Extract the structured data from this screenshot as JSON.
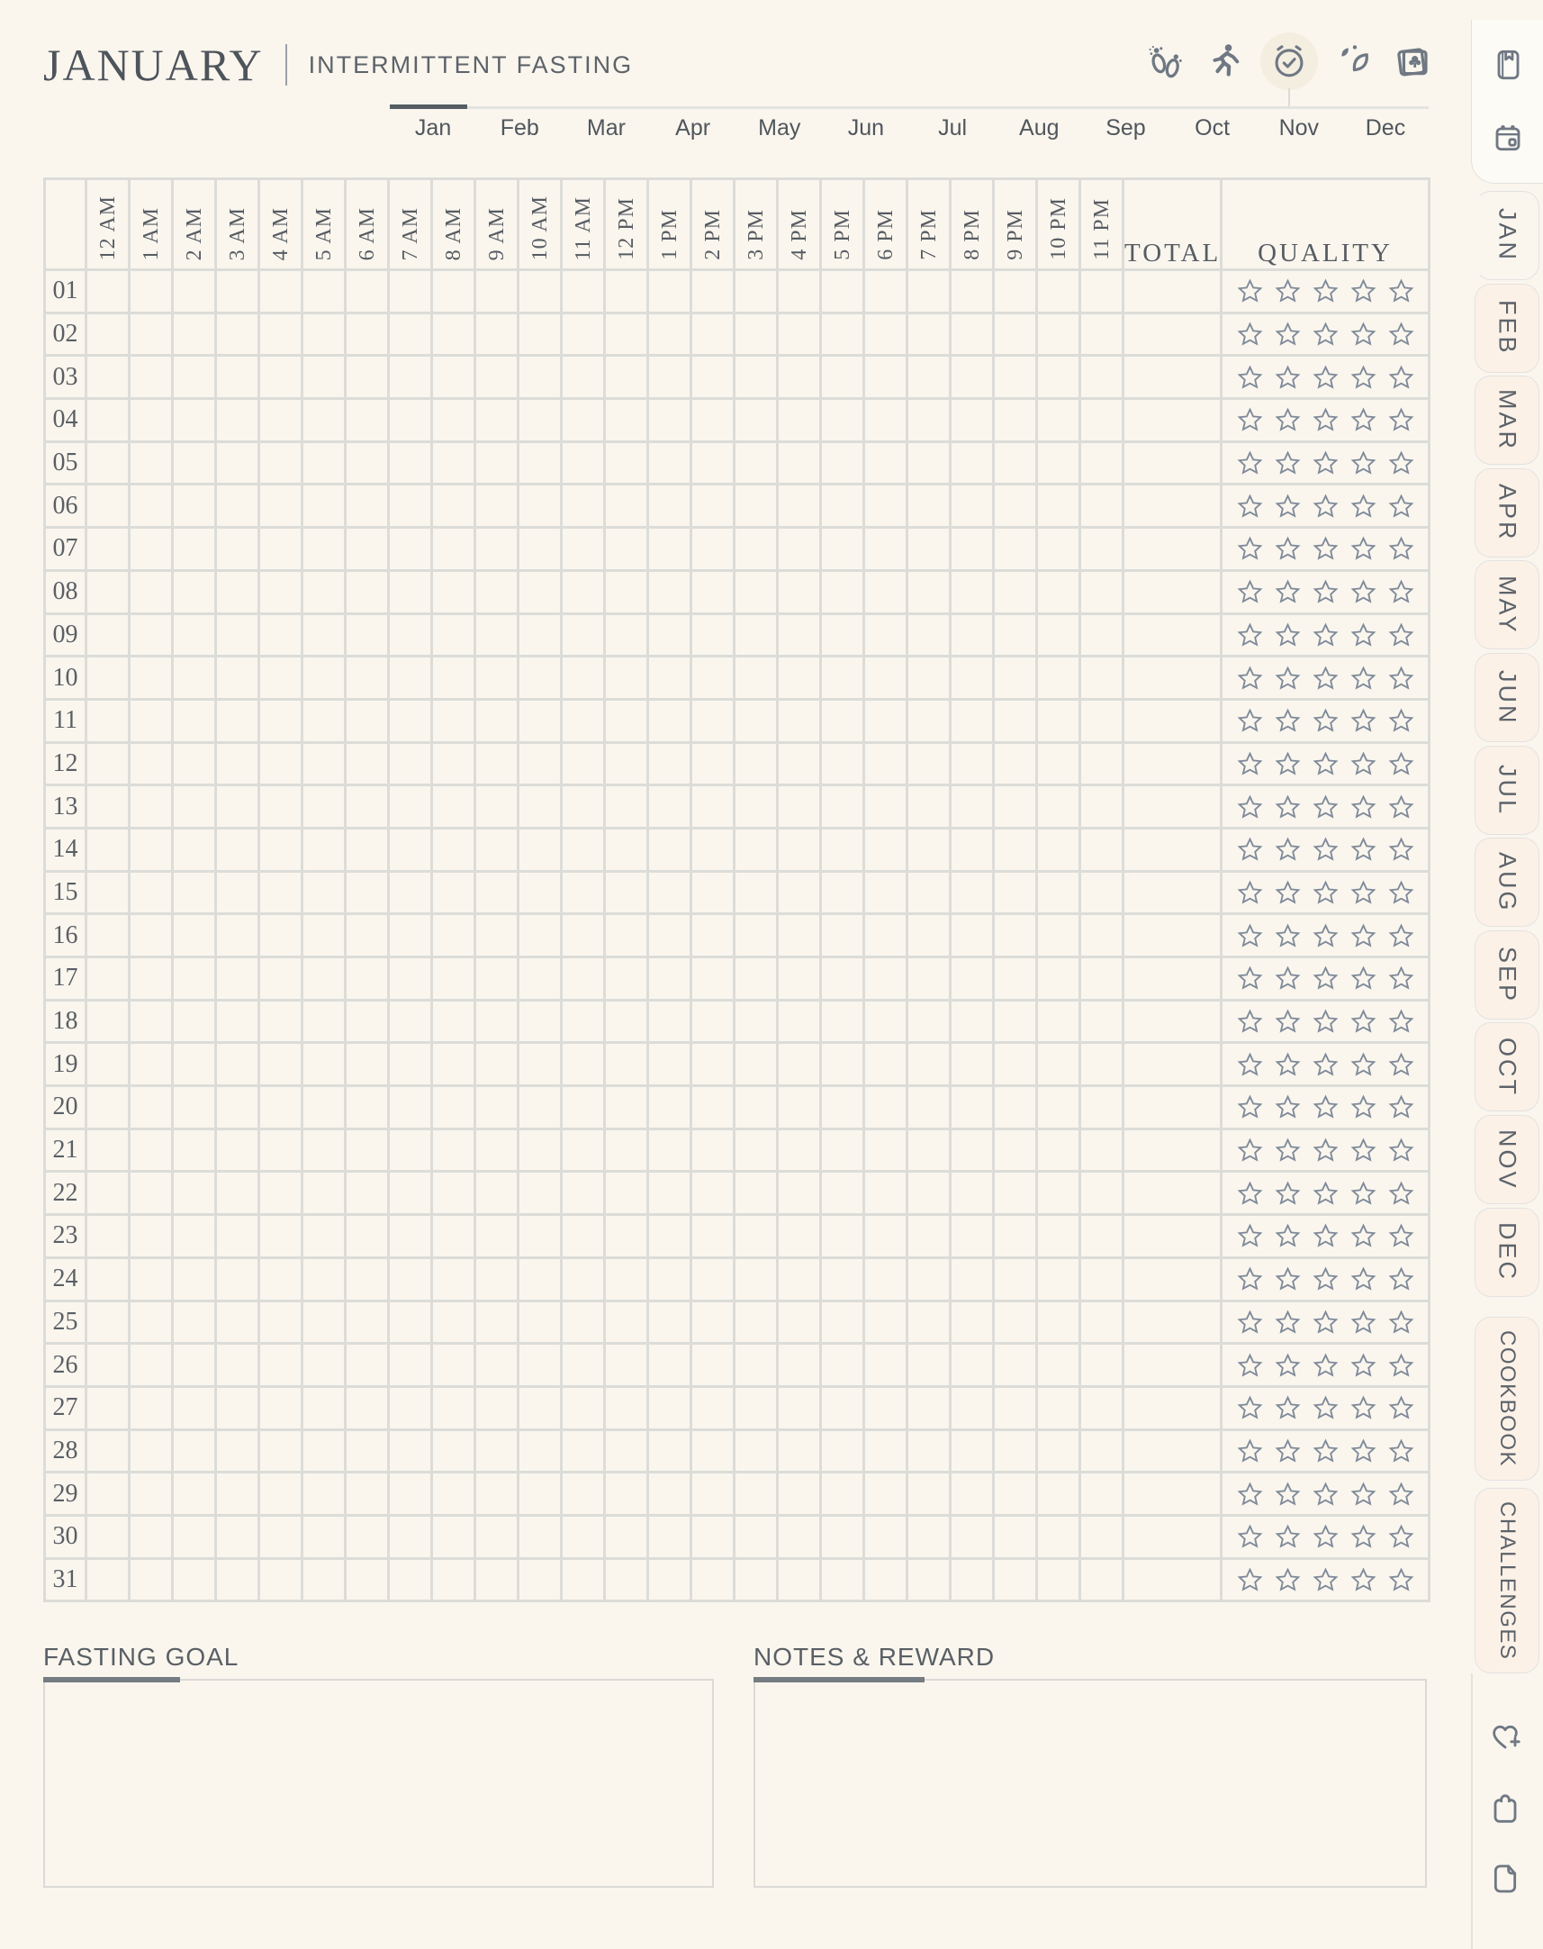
{
  "header": {
    "title": "JANUARY",
    "subtitle": "INTERMITTENT FASTING",
    "tracker_icons": [
      "footprints-icon",
      "runner-icon",
      "alarm-check-icon",
      "leaves-icon",
      "photos-icon"
    ],
    "active_tracker_icon": "alarm-check-icon"
  },
  "month_nav": {
    "months": [
      "Jan",
      "Feb",
      "Mar",
      "Apr",
      "May",
      "Jun",
      "Jul",
      "Aug",
      "Sep",
      "Oct",
      "Nov",
      "Dec"
    ],
    "active_month": "Jan"
  },
  "tracker_table": {
    "hour_columns": [
      "12 AM",
      "1 AM",
      "2 AM",
      "3 AM",
      "4 AM",
      "5 AM",
      "6 AM",
      "7 AM",
      "8 AM",
      "9 AM",
      "10 AM",
      "11 AM",
      "12 PM",
      "1 PM",
      "2 PM",
      "3 PM",
      "4 PM",
      "5 PM",
      "6 PM",
      "7 PM",
      "8 PM",
      "9 PM",
      "10 PM",
      "11 PM"
    ],
    "total_label": "TOTAL",
    "quality_label": "QUALITY",
    "days": [
      "01",
      "02",
      "03",
      "04",
      "05",
      "06",
      "07",
      "08",
      "09",
      "10",
      "11",
      "12",
      "13",
      "14",
      "15",
      "16",
      "17",
      "18",
      "19",
      "20",
      "21",
      "22",
      "23",
      "24",
      "25",
      "26",
      "27",
      "28",
      "29",
      "30",
      "31"
    ],
    "stars_per_row": 5,
    "star_icon": "star-outline-icon",
    "cells_state": "empty"
  },
  "sections": {
    "fasting_goal": {
      "label": "FASTING GOAL",
      "value": ""
    },
    "notes_reward": {
      "label": "NOTES & REWARD",
      "value": ""
    }
  },
  "sidebar": {
    "top_icons": [
      "book-icon",
      "calendar-icon"
    ],
    "tabs": [
      "JAN",
      "FEB",
      "MAR",
      "APR",
      "MAY",
      "JUN",
      "JUL",
      "AUG",
      "SEP",
      "OCT",
      "NOV",
      "DEC",
      "COOKBOOK",
      "CHALLENGES"
    ],
    "active_tab": "JAN",
    "bottom_icons": [
      "heart-plus-icon",
      "clipboard-icon",
      "new-page-icon"
    ]
  },
  "colors": {
    "page_bg": "#faf6ee",
    "inactive_tab_bg": "#fcf1e7",
    "grid_line": "#dcdcd8",
    "star": "#7f8a99",
    "icon": "#6f7883",
    "accent_dark": "#565d63",
    "text_dark": "#4e545b"
  }
}
